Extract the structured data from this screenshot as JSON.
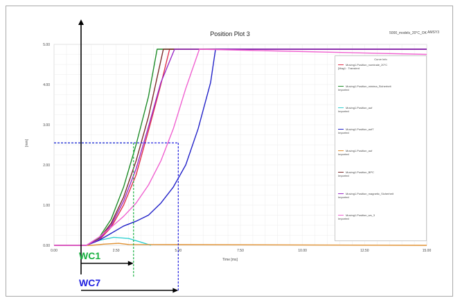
{
  "chart_data": {
    "type": "line",
    "title": "Position Plot 3",
    "corner_label": "5000_models_20°C_OK",
    "plot_id": "AMSY3",
    "xlabel": "Time [ms]",
    "ylabel": "[mm]",
    "xlim": [
      0.0,
      15.0
    ],
    "ylim": [
      0.0,
      5.0
    ],
    "x_ticks": [
      "0.00",
      "2.50",
      "5.00",
      "7.50",
      "10.00",
      "12.50",
      "15.00"
    ],
    "y_ticks": [
      "0.00",
      "1.00",
      "2.00",
      "3.00",
      "4.00",
      "5.00"
    ],
    "grid": true,
    "legend_position": "right",
    "legend_title": "Curve Info",
    "series": [
      {
        "name": "Moving1.Position_nominale_20°C",
        "detail": "[Mag1 : Transient",
        "color": "#e0304a",
        "x": [
          0.0,
          1.3,
          1.8,
          2.3,
          2.8,
          3.3,
          3.8,
          4.3,
          4.65,
          15.0
        ],
        "y": [
          0.0,
          0.0,
          0.12,
          0.45,
          1.0,
          1.75,
          2.85,
          4.0,
          4.88,
          4.88
        ]
      },
      {
        "name": "Moving1.Position_minima_Sicherheit",
        "detail": "Imported",
        "color": "#1e8c28",
        "x": [
          0.0,
          1.3,
          1.8,
          2.3,
          2.8,
          3.3,
          3.8,
          4.15,
          15.0
        ],
        "y": [
          0.0,
          0.0,
          0.18,
          0.65,
          1.45,
          2.5,
          3.7,
          4.88,
          4.88
        ]
      },
      {
        "name": "Moving1.Position_auf",
        "detail": "Imported",
        "color": "#30d0d0",
        "x": [
          0.0,
          1.3,
          1.8,
          2.4,
          3.0,
          3.5,
          3.9
        ],
        "y": [
          0.0,
          0.0,
          0.12,
          0.2,
          0.17,
          0.08,
          0.0
        ]
      },
      {
        "name": "Moving1.Position_auf7",
        "detail": "Imported",
        "color": "#2020c8",
        "x": [
          0.0,
          1.3,
          1.8,
          2.3,
          2.8,
          3.3,
          3.8,
          4.3,
          4.8,
          5.3,
          5.8,
          6.3,
          6.5,
          15.0
        ],
        "y": [
          0.0,
          0.0,
          0.12,
          0.3,
          0.48,
          0.6,
          0.75,
          1.05,
          1.45,
          2.0,
          2.9,
          4.05,
          4.88,
          4.88
        ]
      },
      {
        "name": "Moving1.Position_auf",
        "detail": "Imported",
        "color": "#e09030",
        "x": [
          0.0,
          1.5,
          2.0,
          2.6,
          3.0,
          15.0
        ],
        "y": [
          0.0,
          0.0,
          0.03,
          0.05,
          0.02,
          0.0
        ]
      },
      {
        "name": "Moving1.Position_BPC",
        "detail": "Imported",
        "color": "#7a2a2a",
        "x": [
          0.0,
          1.3,
          1.8,
          2.3,
          2.8,
          3.3,
          3.8,
          4.4,
          15.0
        ],
        "y": [
          0.0,
          0.0,
          0.15,
          0.55,
          1.2,
          2.1,
          3.2,
          4.88,
          4.88
        ]
      },
      {
        "name": "Moving1.Position_magnetic_Sicherheit",
        "detail": "Imported",
        "color": "#9a2ac8",
        "x": [
          0.0,
          1.3,
          1.8,
          2.3,
          2.8,
          3.3,
          3.8,
          4.3,
          4.85,
          5.9,
          15.0
        ],
        "y": [
          0.0,
          0.0,
          0.14,
          0.5,
          1.1,
          1.9,
          2.95,
          4.05,
          4.88,
          4.88,
          4.88
        ]
      },
      {
        "name": "Moving1.Position_ws_3",
        "detail": "Imported",
        "color": "#f060d0",
        "x": [
          0.0,
          1.3,
          1.8,
          2.3,
          2.8,
          3.3,
          3.8,
          4.3,
          4.8,
          5.3,
          5.85,
          15.0
        ],
        "y": [
          0.0,
          0.0,
          0.2,
          0.45,
          0.72,
          1.05,
          1.5,
          2.1,
          2.9,
          3.9,
          4.88,
          4.75
        ]
      }
    ],
    "annotations": [
      {
        "label": "WC1",
        "color": "#18b040",
        "x": 3.2,
        "y": 2.55
      },
      {
        "label": "WC7",
        "color": "#2020e0",
        "x": 5.0,
        "y": 2.55
      }
    ]
  }
}
